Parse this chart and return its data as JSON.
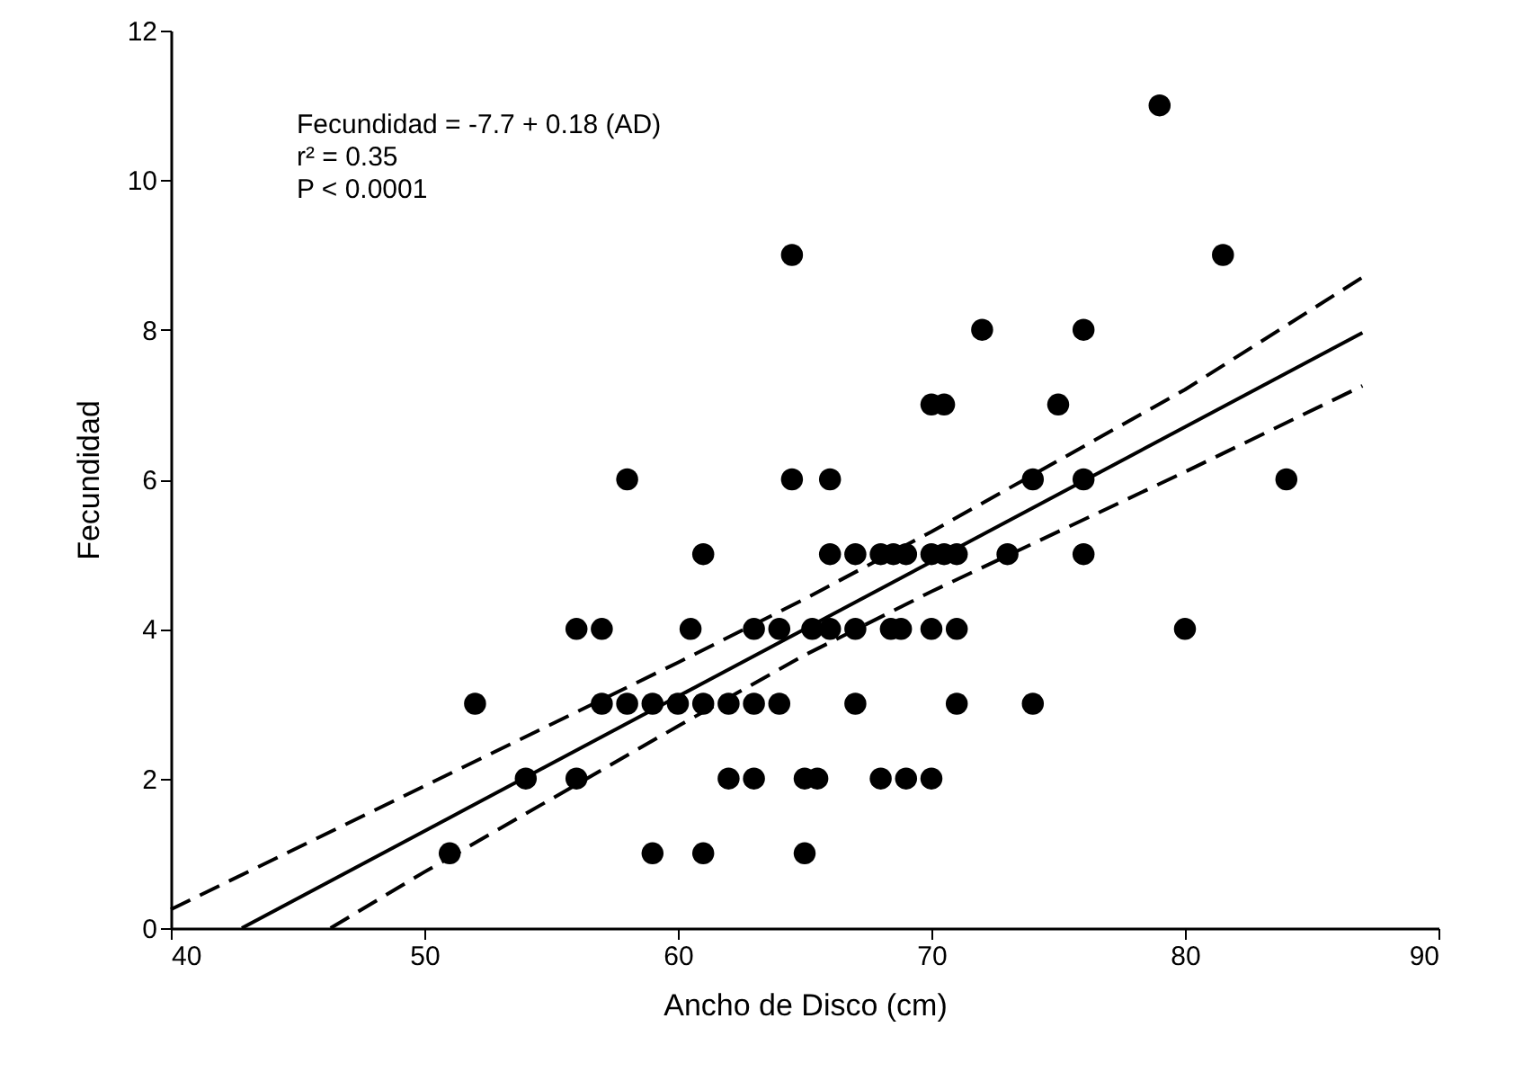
{
  "chart_data": {
    "type": "scatter",
    "xlabel": "Ancho de Disco (cm)",
    "ylabel": "Fecundidad",
    "xlim": [
      40,
      90
    ],
    "xticks": [
      40,
      50,
      60,
      70,
      80,
      90
    ],
    "ylim": [
      0,
      12
    ],
    "yticks": [
      0,
      2,
      4,
      6,
      8,
      10,
      12
    ],
    "grid": false,
    "annotations": [
      "Fecundidad = -7.7 + 0.18 (AD)",
      "r² = 0.35",
      "P < 0.0001"
    ],
    "series": [
      {
        "type": "scatter",
        "color": "#000000",
        "marker": "circle",
        "x": [
          79,
          64.5,
          81.5,
          72,
          76,
          70,
          70.5,
          75,
          58,
          64.5,
          66,
          74,
          76,
          84,
          61,
          66,
          67,
          68,
          68.5,
          69,
          70,
          70.5,
          71,
          73,
          76,
          56,
          57,
          60.5,
          63,
          64,
          65.3,
          66,
          67,
          68.4,
          68.8,
          70,
          71,
          80,
          52,
          57,
          58,
          59,
          60,
          61,
          62,
          63,
          64,
          67,
          71,
          74,
          54,
          56,
          62,
          63,
          65,
          65.5,
          68,
          69,
          70,
          51,
          59,
          61,
          65
        ],
        "values": [
          11,
          9,
          9,
          8,
          8,
          7,
          7,
          7,
          6,
          6,
          6,
          6,
          6,
          6,
          5,
          5,
          5,
          5,
          5,
          5,
          5,
          5,
          5,
          5,
          5,
          4,
          4,
          4,
          4,
          4,
          4,
          4,
          4,
          4,
          4,
          4,
          4,
          4,
          3,
          3,
          3,
          3,
          3,
          3,
          3,
          3,
          3,
          3,
          3,
          3,
          2,
          2,
          2,
          2,
          2,
          2,
          2,
          2,
          2,
          1,
          1,
          1,
          1
        ]
      },
      {
        "type": "line",
        "color": "#000000",
        "line_style": "solid",
        "x": [
          42.8,
          87
        ],
        "values": [
          0,
          7.96
        ]
      },
      {
        "type": "line",
        "color": "#000000",
        "line_style": "dashed",
        "x": [
          40,
          50,
          60,
          65,
          70,
          80,
          87
        ],
        "values": [
          0.25,
          1.9,
          3.55,
          4.4,
          5.3,
          7.2,
          8.7
        ]
      },
      {
        "type": "line",
        "color": "#000000",
        "line_style": "dashed",
        "x": [
          46.3,
          50,
          60,
          65,
          70,
          80,
          87
        ],
        "values": [
          0,
          0.75,
          2.7,
          3.65,
          4.5,
          6.1,
          7.25
        ]
      }
    ]
  }
}
